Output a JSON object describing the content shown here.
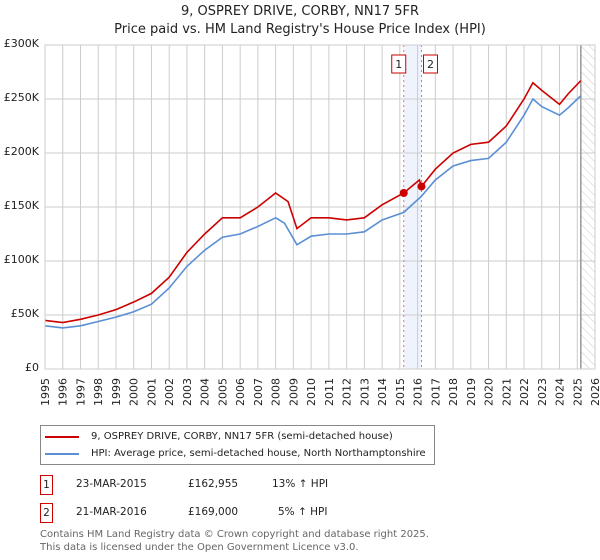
{
  "chart_data": {
    "type": "line",
    "title": "9, OSPREY DRIVE, CORBY, NN17 5FR",
    "subtitle": "Price paid vs. HM Land Registry's House Price Index (HPI)",
    "xlim": [
      1995,
      2026
    ],
    "ylim": [
      0,
      300000
    ],
    "x_ticks": [
      "1995",
      "1996",
      "1997",
      "1998",
      "1999",
      "2000",
      "2001",
      "2002",
      "2003",
      "2004",
      "2005",
      "2006",
      "2007",
      "2008",
      "2009",
      "2010",
      "2011",
      "2012",
      "2013",
      "2014",
      "2015",
      "2016",
      "2017",
      "2018",
      "2019",
      "2020",
      "2021",
      "2022",
      "2023",
      "2024",
      "2025",
      "2026"
    ],
    "y_ticks": [
      {
        "v": 0,
        "label": "£0"
      },
      {
        "v": 50000,
        "label": "£50K"
      },
      {
        "v": 100000,
        "label": "£100K"
      },
      {
        "v": 150000,
        "label": "£150K"
      },
      {
        "v": 200000,
        "label": "£200K"
      },
      {
        "v": 250000,
        "label": "£250K"
      },
      {
        "v": 300000,
        "label": "£300K"
      }
    ],
    "grid": true,
    "series": [
      {
        "name": "9, OSPREY DRIVE, CORBY, NN17 5FR (semi-detached house)",
        "color": "#cc0000",
        "x": [
          1995,
          1996,
          1997,
          1998,
          1999,
          2000,
          2001,
          2002,
          2003,
          2004,
          2005,
          2006,
          2007,
          2008,
          2008.7,
          2009.2,
          2010,
          2011,
          2012,
          2013,
          2014,
          2015.22,
          2016.1,
          2016.22,
          2017,
          2018,
          2019,
          2020,
          2021,
          2022,
          2022.5,
          2023,
          2024,
          2024.5,
          2025.2
        ],
        "y": [
          45000,
          43000,
          46000,
          50000,
          55000,
          62000,
          70000,
          85000,
          108000,
          125000,
          140000,
          140000,
          150000,
          163000,
          155000,
          130000,
          140000,
          140000,
          138000,
          140000,
          152000,
          162955,
          175000,
          169000,
          185000,
          200000,
          208000,
          210000,
          225000,
          250000,
          265000,
          258000,
          245000,
          255000,
          267000
        ]
      },
      {
        "name": "HPI: Average price, semi-detached house, North Northamptonshire",
        "color": "#5b8fd4",
        "x": [
          1995,
          1996,
          1997,
          1998,
          1999,
          2000,
          2001,
          2002,
          2003,
          2004,
          2005,
          2006,
          2007,
          2008,
          2008.5,
          2009.2,
          2010,
          2011,
          2012,
          2013,
          2014,
          2015.22,
          2016.22,
          2017,
          2018,
          2019,
          2020,
          2021,
          2022,
          2022.5,
          2023,
          2024,
          2024.5,
          2025.2
        ],
        "y": [
          40000,
          38000,
          40000,
          44000,
          48000,
          53000,
          60000,
          75000,
          95000,
          110000,
          122000,
          125000,
          132000,
          140000,
          135000,
          115000,
          123000,
          125000,
          125000,
          127000,
          138000,
          145000,
          160000,
          175000,
          188000,
          193000,
          195000,
          210000,
          235000,
          250000,
          243000,
          235000,
          242000,
          253000
        ]
      }
    ],
    "annotations": [
      {
        "label": "1",
        "x": 2015.22,
        "y": 162955
      },
      {
        "label": "2",
        "x": 2016.22,
        "y": 169000
      }
    ],
    "forecast_start": 2025.2,
    "legend_placement": "bottom"
  },
  "transactions": [
    {
      "num": "1",
      "date": "23-MAR-2015",
      "price": "£162,955",
      "hpi": "13% ↑ HPI"
    },
    {
      "num": "2",
      "date": "21-MAR-2016",
      "price": "£169,000",
      "hpi": "5% ↑ HPI"
    }
  ],
  "footer": {
    "line1": "Contains HM Land Registry data © Crown copyright and database right 2025.",
    "line2": "This data is licensed under the Open Government Licence v3.0."
  }
}
